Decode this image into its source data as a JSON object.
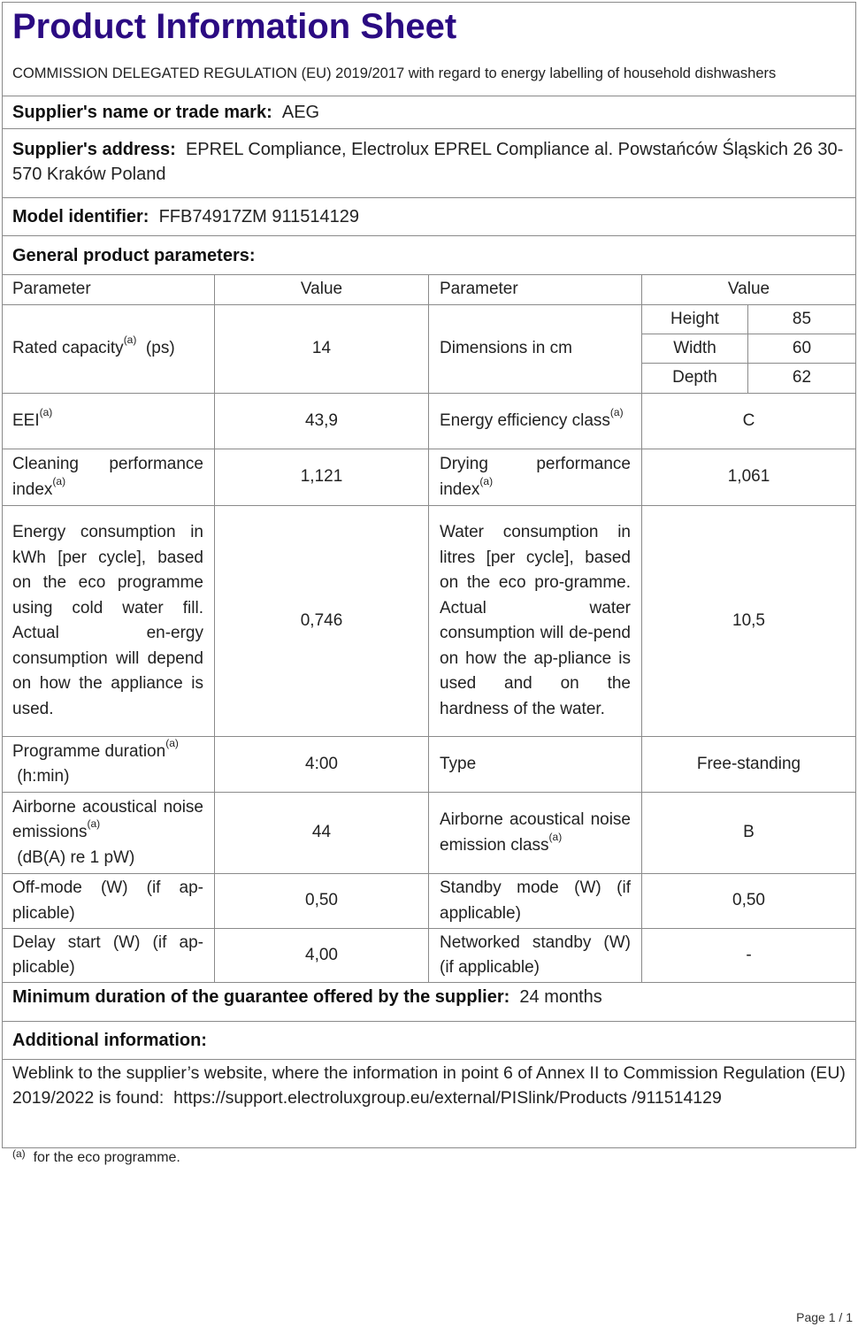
{
  "title": "Product Information Sheet",
  "subtitle": "COMMISSION DELEGATED REGULATION (EU) 2019/2017 with regard to energy labelling of household dishwashers",
  "supplier_name": {
    "label": "Supplier's name or trade mark:",
    "value": "AEG"
  },
  "supplier_address": {
    "label": "Supplier's address:",
    "value": "EPREL Compliance, Electrolux EPREL Compliance al. Powstańców Śląskich 26 30-570 Kraków Poland"
  },
  "model": {
    "label": "Model identifier:",
    "value": "FFB74917ZM 911514129"
  },
  "general": {
    "label": "General product parameters:"
  },
  "headers": {
    "param1": "Parameter",
    "value1": "Value",
    "param2": "Parameter",
    "value2": "Value"
  },
  "rated_capacity": {
    "label": "Rated capacity",
    "sup": "(a)",
    "unit": "(ps)",
    "value": "14"
  },
  "dimensions": {
    "label": "Dimensions in cm",
    "height_label": "Height",
    "height": "85",
    "width_label": "Width",
    "width": "60",
    "depth_label": "Depth",
    "depth": "62"
  },
  "eei": {
    "label": "EEI",
    "sup": "(a)",
    "value": "43,9"
  },
  "energy_class": {
    "label": "Energy efficiency class",
    "sup": "(a)",
    "value": "C"
  },
  "cleaning": {
    "label": "Cleaning performance index",
    "sup": "(a)",
    "value": "1,121"
  },
  "drying": {
    "label": "Drying performance index",
    "sup": "(a)",
    "value": "1,061"
  },
  "energy_consumption": {
    "label": "Energy consumption in kWh [per cycle], based on the eco programme using cold water fill. Actual en-ergy consumption will depend on how the appliance is used.",
    "value": "0,746"
  },
  "water_consumption": {
    "label": "Water consumption in litres [per cycle], based on the eco pro-gramme. Actual water consumption will de-pend on how the ap-pliance is used and on the hardness of the water.",
    "value": "10,5"
  },
  "programme_duration": {
    "label": "Programme duration",
    "sup": "(a)",
    "unit": "(h:min)",
    "value": "4:00"
  },
  "type": {
    "label": "Type",
    "value": "Free-standing"
  },
  "noise": {
    "label": "Airborne acoustical noise emissions",
    "sup": "(a)",
    "unit": "(dB(A) re 1 pW)",
    "value": "44"
  },
  "noise_class": {
    "label": "Airborne acoustical noise emission class",
    "sup": "(a)",
    "value": "B"
  },
  "off_mode": {
    "label": "Off-mode (W) (if ap-plicable)",
    "value": "0,50"
  },
  "standby": {
    "label": "Standby mode (W) (if applicable)",
    "value": "0,50"
  },
  "delay_start": {
    "label": "Delay start (W) (if ap-plicable)",
    "value": "4,00"
  },
  "networked_standby": {
    "label": "Networked standby (W) (if applicable)",
    "value": "-"
  },
  "guarantee": {
    "label": "Minimum duration of the guarantee offered by the supplier:",
    "value": "24 months"
  },
  "additional": {
    "label": "Additional information:"
  },
  "weblink": {
    "text": "Weblink to the supplier’s website, where the information in point 6 of Annex II to Commission Regulation (EU) 2019/2022 is found:",
    "url": "https://support.electroluxgroup.eu/external/PISlink/Products /911514129"
  },
  "footnote": {
    "sup": "(a)",
    "text": "for the eco programme."
  },
  "page": {
    "label": "Page",
    "current": "1",
    "sep": "/",
    "total": "1"
  },
  "colors": {
    "title": "#2b0b82",
    "border": "#8a8a8a"
  }
}
